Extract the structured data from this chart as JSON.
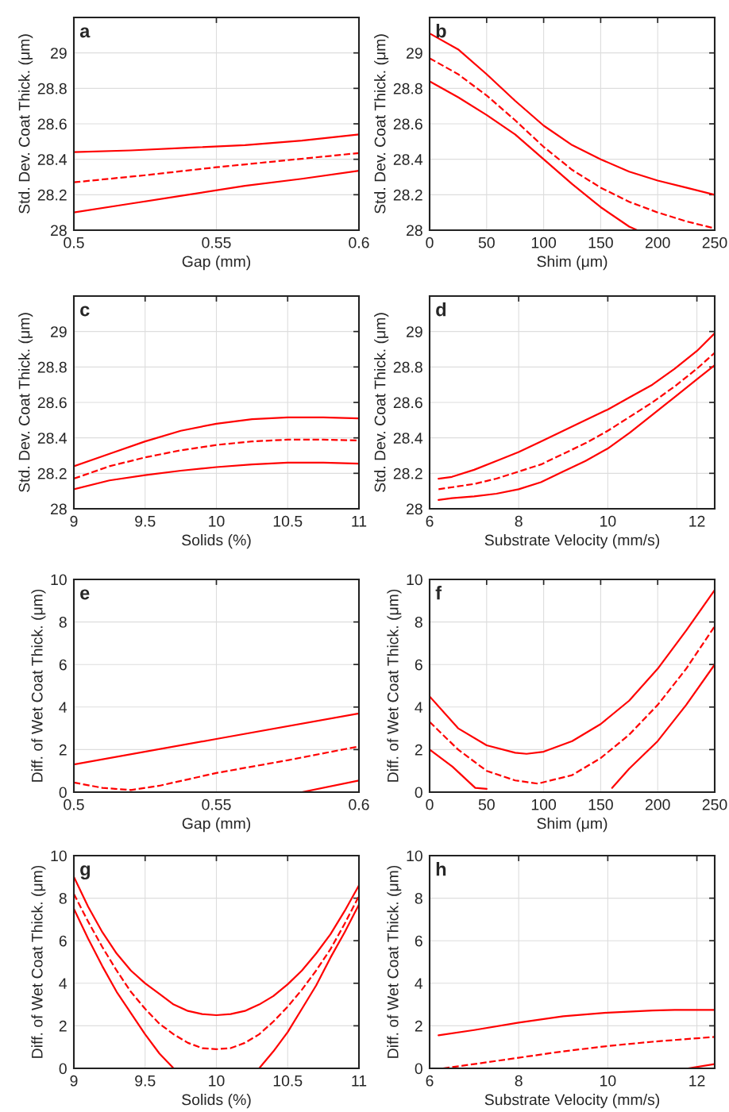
{
  "chart_data": [
    {
      "type": "line",
      "annotations": [
        "a"
      ],
      "xlabel": "Gap (mm)",
      "ylabel": "Std. Dev. Coat Thick. (μm)",
      "xlim": [
        0.5,
        0.6
      ],
      "ylim": [
        28,
        29.2
      ],
      "xticks": [
        0.5,
        0.55,
        0.6
      ],
      "yticks": [
        28,
        28.2,
        28.4,
        28.6,
        28.8,
        29
      ],
      "grid": true,
      "series": [
        {
          "color": "#ff0000",
          "line_style": "solid",
          "x": [
            0.5,
            0.52,
            0.54,
            0.56,
            0.58,
            0.6
          ],
          "values": [
            28.44,
            28.45,
            28.465,
            28.48,
            28.505,
            28.54
          ]
        },
        {
          "color": "#ff0000",
          "line_style": "dashed",
          "x": [
            0.5,
            0.525,
            0.55,
            0.575,
            0.6
          ],
          "values": [
            28.27,
            28.31,
            28.355,
            28.395,
            28.435
          ]
        },
        {
          "color": "#ff0000",
          "line_style": "solid",
          "x": [
            0.5,
            0.52,
            0.54,
            0.56,
            0.58,
            0.6
          ],
          "values": [
            28.1,
            28.15,
            28.2,
            28.25,
            28.29,
            28.335
          ]
        }
      ]
    },
    {
      "type": "line",
      "annotations": [
        "b"
      ],
      "xlabel": "Shim (μm)",
      "ylabel": "Std. Dev. Coat Thick. (μm)",
      "xlim": [
        0,
        250
      ],
      "ylim": [
        28,
        29.2
      ],
      "xticks": [
        0,
        50,
        100,
        150,
        200,
        250
      ],
      "yticks": [
        28,
        28.2,
        28.4,
        28.6,
        28.8,
        29
      ],
      "grid": true,
      "series": [
        {
          "color": "#ff0000",
          "line_style": "solid",
          "x": [
            0,
            25,
            50,
            75,
            100,
            125,
            150,
            175,
            200,
            225,
            250
          ],
          "values": [
            29.11,
            29.02,
            28.88,
            28.73,
            28.59,
            28.48,
            28.4,
            28.33,
            28.28,
            28.24,
            28.2
          ]
        },
        {
          "color": "#ff0000",
          "line_style": "dashed",
          "x": [
            0,
            25,
            50,
            75,
            100,
            125,
            150,
            175,
            200,
            225,
            250
          ],
          "values": [
            28.97,
            28.88,
            28.76,
            28.62,
            28.47,
            28.34,
            28.24,
            28.16,
            28.1,
            28.05,
            28.01
          ]
        },
        {
          "color": "#ff0000",
          "line_style": "solid",
          "x": [
            0,
            25,
            50,
            75,
            100,
            125,
            150,
            175,
            182
          ],
          "values": [
            28.84,
            28.75,
            28.65,
            28.54,
            28.4,
            28.26,
            28.13,
            28.02,
            28.0
          ]
        }
      ]
    },
    {
      "type": "line",
      "annotations": [
        "c"
      ],
      "xlabel": "Solids (%)",
      "ylabel": "Std. Dev. Coat Thick. (μm)",
      "xlim": [
        9,
        11
      ],
      "ylim": [
        28,
        29.2
      ],
      "xticks": [
        9,
        9.5,
        10,
        10.5,
        11
      ],
      "yticks": [
        28,
        28.2,
        28.4,
        28.6,
        28.8,
        29
      ],
      "grid": true,
      "series": [
        {
          "color": "#ff0000",
          "line_style": "solid",
          "x": [
            9,
            9.25,
            9.5,
            9.75,
            10,
            10.25,
            10.5,
            10.75,
            11
          ],
          "values": [
            28.24,
            28.31,
            28.38,
            28.44,
            28.48,
            28.505,
            28.515,
            28.515,
            28.51
          ]
        },
        {
          "color": "#ff0000",
          "line_style": "dashed",
          "x": [
            9,
            9.25,
            9.5,
            9.75,
            10,
            10.25,
            10.5,
            10.75,
            11
          ],
          "values": [
            28.17,
            28.24,
            28.29,
            28.33,
            28.36,
            28.38,
            28.39,
            28.39,
            28.385
          ]
        },
        {
          "color": "#ff0000",
          "line_style": "solid",
          "x": [
            9,
            9.25,
            9.5,
            9.75,
            10,
            10.25,
            10.5,
            10.75,
            11
          ],
          "values": [
            28.11,
            28.16,
            28.19,
            28.215,
            28.235,
            28.25,
            28.26,
            28.26,
            28.255
          ]
        }
      ]
    },
    {
      "type": "line",
      "annotations": [
        "d"
      ],
      "xlabel": "Substrate Velocity (mm/s)",
      "ylabel": "Std. Dev. Coat Thick. (μm)",
      "xlim": [
        6,
        12.4
      ],
      "ylim": [
        28,
        29.2
      ],
      "xticks": [
        6,
        8,
        10,
        12
      ],
      "yticks": [
        28,
        28.2,
        28.4,
        28.6,
        28.8,
        29
      ],
      "grid": true,
      "series": [
        {
          "color": "#ff0000",
          "line_style": "solid",
          "x": [
            6.2,
            6.5,
            7,
            7.5,
            8,
            8.5,
            9,
            9.5,
            10,
            10.5,
            11,
            11.5,
            12,
            12.4
          ],
          "values": [
            28.17,
            28.18,
            28.22,
            28.27,
            28.32,
            28.38,
            28.44,
            28.5,
            28.56,
            28.63,
            28.7,
            28.79,
            28.89,
            28.99
          ]
        },
        {
          "color": "#ff0000",
          "line_style": "dashed",
          "x": [
            6.2,
            7,
            7.5,
            8,
            8.5,
            9,
            9.5,
            10,
            10.5,
            11,
            11.5,
            12,
            12.4
          ],
          "values": [
            28.11,
            28.14,
            28.17,
            28.21,
            28.25,
            28.31,
            28.37,
            28.44,
            28.52,
            28.6,
            28.69,
            28.79,
            28.88
          ]
        },
        {
          "color": "#ff0000",
          "line_style": "solid",
          "x": [
            6.2,
            6.5,
            7,
            7.5,
            8,
            8.5,
            9,
            9.5,
            10,
            10.5,
            11,
            11.5,
            12,
            12.4
          ],
          "values": [
            28.05,
            28.06,
            28.07,
            28.085,
            28.11,
            28.15,
            28.21,
            28.27,
            28.34,
            28.43,
            28.53,
            28.63,
            28.73,
            28.81
          ]
        }
      ]
    },
    {
      "type": "line",
      "annotations": [
        "e"
      ],
      "xlabel": "Gap (mm)",
      "ylabel": "Diff. of Wet Coat Thick. (μm)",
      "xlim": [
        0.5,
        0.6
      ],
      "ylim": [
        0,
        10
      ],
      "xticks": [
        0.5,
        0.55,
        0.6
      ],
      "yticks": [
        0,
        2,
        4,
        6,
        8,
        10
      ],
      "grid": true,
      "series": [
        {
          "color": "#ff0000",
          "line_style": "solid",
          "x": [
            0.5,
            0.55,
            0.6
          ],
          "values": [
            1.3,
            2.5,
            3.7
          ]
        },
        {
          "color": "#ff0000",
          "line_style": "dashed",
          "x": [
            0.5,
            0.51,
            0.52,
            0.53,
            0.55,
            0.575,
            0.6
          ],
          "values": [
            0.45,
            0.2,
            0.1,
            0.3,
            0.9,
            1.5,
            2.15
          ]
        },
        {
          "color": "#ff0000",
          "line_style": "solid",
          "x": [
            0.58,
            0.6
          ],
          "values": [
            0,
            0.55
          ]
        }
      ]
    },
    {
      "type": "line",
      "annotations": [
        "f"
      ],
      "xlabel": "Shim (μm)",
      "ylabel": "Diff. of Wet Coat Thick. (μm)",
      "xlim": [
        0,
        250
      ],
      "ylim": [
        0,
        10
      ],
      "xticks": [
        0,
        50,
        100,
        150,
        200,
        250
      ],
      "yticks": [
        0,
        2,
        4,
        6,
        8,
        10
      ],
      "grid": true,
      "series": [
        {
          "color": "#ff0000",
          "line_style": "solid",
          "x": [
            0,
            25,
            50,
            75,
            85,
            100,
            125,
            150,
            175,
            200,
            225,
            250
          ],
          "values": [
            4.5,
            3.0,
            2.2,
            1.85,
            1.8,
            1.9,
            2.4,
            3.2,
            4.3,
            5.8,
            7.6,
            9.5
          ]
        },
        {
          "color": "#ff0000",
          "line_style": "dashed",
          "x": [
            0,
            25,
            50,
            75,
            95,
            125,
            150,
            175,
            200,
            225,
            250
          ],
          "values": [
            3.3,
            2.0,
            1.0,
            0.55,
            0.4,
            0.8,
            1.6,
            2.7,
            4.1,
            5.8,
            7.8
          ]
        },
        {
          "color": "#ff0000",
          "line_style": "solid",
          "x": [
            0,
            20,
            40,
            50,
            100,
            160,
            175,
            200,
            225,
            250
          ],
          "values": [
            2.0,
            1.2,
            0.2,
            0.15,
            null,
            0.2,
            1.1,
            2.4,
            4.1,
            6.0
          ]
        }
      ]
    },
    {
      "type": "line",
      "annotations": [
        "g"
      ],
      "xlabel": "Solids (%)",
      "ylabel": "Diff. of Wet Coat Thick. (μm)",
      "xlim": [
        9,
        11
      ],
      "ylim": [
        0,
        10
      ],
      "xticks": [
        9,
        9.5,
        10,
        10.5,
        11
      ],
      "yticks": [
        0,
        2,
        4,
        6,
        8,
        10
      ],
      "grid": true,
      "series": [
        {
          "color": "#ff0000",
          "line_style": "solid",
          "x": [
            9,
            9.1,
            9.2,
            9.3,
            9.4,
            9.5,
            9.6,
            9.7,
            9.8,
            9.9,
            10,
            10.1,
            10.2,
            10.3,
            10.4,
            10.5,
            10.6,
            10.7,
            10.8,
            10.9,
            11
          ],
          "values": [
            9.0,
            7.6,
            6.4,
            5.4,
            4.6,
            4.0,
            3.5,
            3.0,
            2.7,
            2.55,
            2.5,
            2.55,
            2.7,
            3.0,
            3.4,
            3.95,
            4.6,
            5.4,
            6.3,
            7.4,
            8.6
          ]
        },
        {
          "color": "#ff0000",
          "line_style": "dashed",
          "x": [
            9,
            9.1,
            9.2,
            9.3,
            9.4,
            9.5,
            9.6,
            9.7,
            9.8,
            9.9,
            10,
            10.1,
            10.2,
            10.3,
            10.4,
            10.5,
            10.6,
            10.7,
            10.8,
            10.9,
            11
          ],
          "values": [
            8.2,
            6.9,
            5.7,
            4.6,
            3.6,
            2.8,
            2.1,
            1.6,
            1.2,
            0.95,
            0.9,
            0.95,
            1.2,
            1.6,
            2.2,
            2.9,
            3.7,
            4.6,
            5.6,
            6.8,
            8.1
          ]
        },
        {
          "color": "#ff0000",
          "line_style": "solid",
          "x": [
            9,
            9.1,
            9.2,
            9.3,
            9.4,
            9.5,
            9.6,
            9.7,
            10,
            10.3,
            10.4,
            10.5,
            10.6,
            10.7,
            10.8,
            10.9,
            11
          ],
          "values": [
            7.5,
            6.1,
            4.8,
            3.6,
            2.6,
            1.6,
            0.7,
            0.0,
            null,
            0.0,
            0.8,
            1.7,
            2.8,
            3.9,
            5.2,
            6.4,
            7.7
          ]
        }
      ]
    },
    {
      "type": "line",
      "annotations": [
        "h"
      ],
      "xlabel": "Substrate Velocity (mm/s)",
      "ylabel": "Diff. of Wet Coat Thick. (μm)",
      "xlim": [
        6,
        12.4
      ],
      "ylim": [
        0,
        10
      ],
      "xticks": [
        6,
        8,
        10,
        12
      ],
      "yticks": [
        0,
        2,
        4,
        6,
        8,
        10
      ],
      "grid": true,
      "series": [
        {
          "color": "#ff0000",
          "line_style": "solid",
          "x": [
            6.2,
            7,
            8,
            9,
            10,
            11,
            11.5,
            12.4
          ],
          "values": [
            1.55,
            1.8,
            2.15,
            2.45,
            2.62,
            2.72,
            2.75,
            2.75
          ]
        },
        {
          "color": "#ff0000",
          "line_style": "dashed",
          "x": [
            6.3,
            7,
            8,
            9,
            10,
            11,
            12.4
          ],
          "values": [
            0.0,
            0.2,
            0.5,
            0.8,
            1.05,
            1.25,
            1.48
          ]
        },
        {
          "color": "#ff0000",
          "line_style": "solid",
          "x": [
            11.8,
            12.4
          ],
          "values": [
            0,
            0.2
          ]
        }
      ]
    }
  ]
}
